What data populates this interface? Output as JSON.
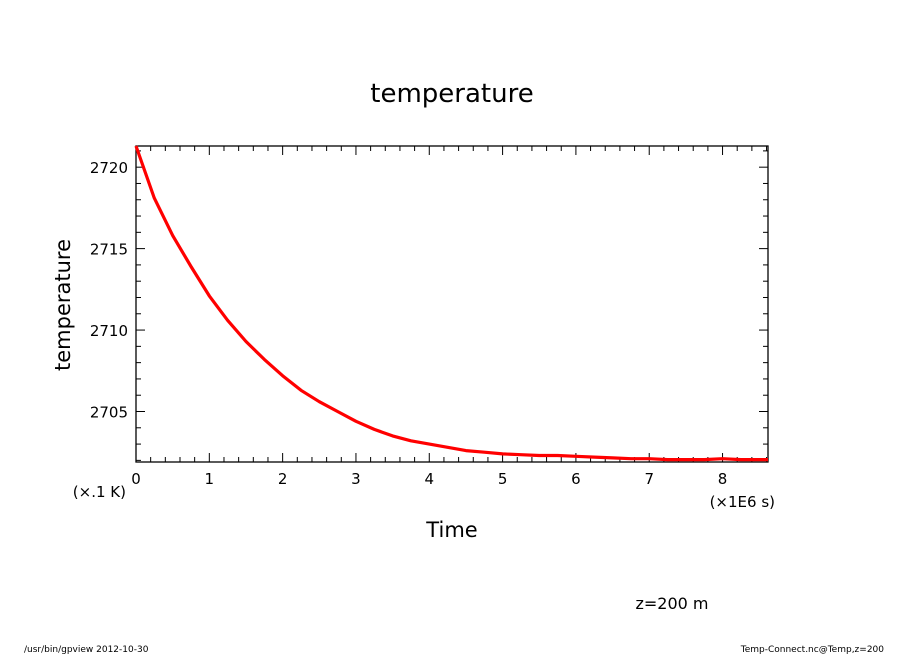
{
  "chart_data": {
    "type": "line",
    "title": "temperature",
    "xlabel": "Time",
    "ylabel": "temperature",
    "x_unit_label": "(×1E6 s)",
    "y_unit_label": "(×.1 K)",
    "xlim": [
      0,
      8.62
    ],
    "ylim": [
      2701.9,
      2721.3
    ],
    "x_ticks": [
      "0",
      "1",
      "2",
      "3",
      "4",
      "5",
      "6",
      "7",
      "8"
    ],
    "y_ticks": [
      "2705",
      "2710",
      "2715",
      "2720"
    ],
    "grid": false,
    "series": [
      {
        "color": "#ff0000",
        "x": [
          0,
          0.25,
          0.5,
          0.75,
          1.0,
          1.25,
          1.5,
          1.75,
          2.0,
          2.25,
          2.5,
          2.75,
          3.0,
          3.25,
          3.5,
          3.75,
          4.0,
          4.25,
          4.5,
          4.75,
          5.0,
          5.25,
          5.5,
          5.75,
          6.0,
          6.25,
          6.5,
          6.75,
          7.0,
          7.25,
          7.5,
          7.75,
          8.0,
          8.25,
          8.62
        ],
        "values": [
          2721.3,
          2718.1,
          2715.8,
          2713.9,
          2712.1,
          2710.6,
          2709.3,
          2708.2,
          2707.2,
          2706.3,
          2705.6,
          2705.0,
          2704.4,
          2703.9,
          2703.5,
          2703.2,
          2703.0,
          2702.8,
          2702.6,
          2702.5,
          2702.4,
          2702.35,
          2702.3,
          2702.3,
          2702.25,
          2702.2,
          2702.15,
          2702.1,
          2702.1,
          2702.05,
          2702.05,
          2702.05,
          2702.1,
          2702.05,
          2702.05
        ]
      }
    ]
  },
  "annotations": {
    "level": "z=200 m",
    "footer_left": "/usr/bin/gpview   2012-10-30",
    "footer_right": "Temp-Connect.nc@Temp,z=200"
  }
}
